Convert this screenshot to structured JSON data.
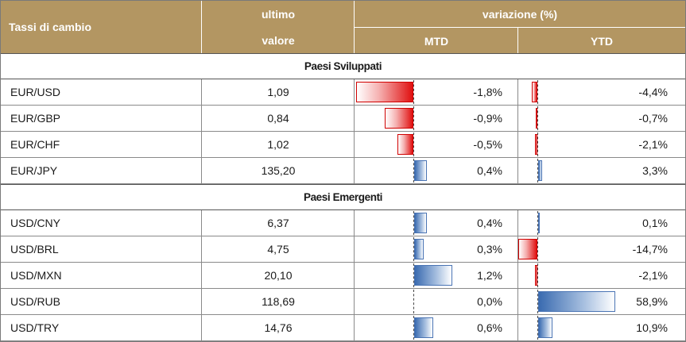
{
  "header": {
    "label": "Tassi di cambio",
    "ultimo": "ultimo",
    "valore": "valore",
    "variazione": "variazione (%)",
    "mtd": "MTD",
    "ytd": "YTD"
  },
  "colors": {
    "header_bg": "#b39662",
    "negative_bar": "#e01010",
    "positive_bar": "#3a6bb0"
  },
  "sections": [
    {
      "title": "Paesi Sviluppati",
      "rows": [
        {
          "pair": "EUR/USD",
          "value": "1,09",
          "mtd": "-1,8%",
          "ytd": "-4,4%",
          "mtd_num": -1.8,
          "ytd_num": -4.4
        },
        {
          "pair": "EUR/GBP",
          "value": "0,84",
          "mtd": "-0,9%",
          "ytd": "-0,7%",
          "mtd_num": -0.9,
          "ytd_num": -0.7
        },
        {
          "pair": "EUR/CHF",
          "value": "1,02",
          "mtd": "-0,5%",
          "ytd": "-2,1%",
          "mtd_num": -0.5,
          "ytd_num": -2.1
        },
        {
          "pair": "EUR/JPY",
          "value": "135,20",
          "mtd": "0,4%",
          "ytd": "3,3%",
          "mtd_num": 0.4,
          "ytd_num": 3.3
        }
      ]
    },
    {
      "title": "Paesi Emergenti",
      "rows": [
        {
          "pair": "USD/CNY",
          "value": "6,37",
          "mtd": "0,4%",
          "ytd": "0,1%",
          "mtd_num": 0.4,
          "ytd_num": 0.1
        },
        {
          "pair": "USD/BRL",
          "value": "4,75",
          "mtd": "0,3%",
          "ytd": "-14,7%",
          "mtd_num": 0.3,
          "ytd_num": -14.7
        },
        {
          "pair": "USD/MXN",
          "value": "20,10",
          "mtd": "1,2%",
          "ytd": "-2,1%",
          "mtd_num": 1.2,
          "ytd_num": -2.1
        },
        {
          "pair": "USD/RUB",
          "value": "118,69",
          "mtd": "0,0%",
          "ytd": "58,9%",
          "mtd_num": 0.0,
          "ytd_num": 58.9
        },
        {
          "pair": "USD/TRY",
          "value": "14,76",
          "mtd": "0,6%",
          "ytd": "10,9%",
          "mtd_num": 0.6,
          "ytd_num": 10.9
        }
      ]
    }
  ]
}
